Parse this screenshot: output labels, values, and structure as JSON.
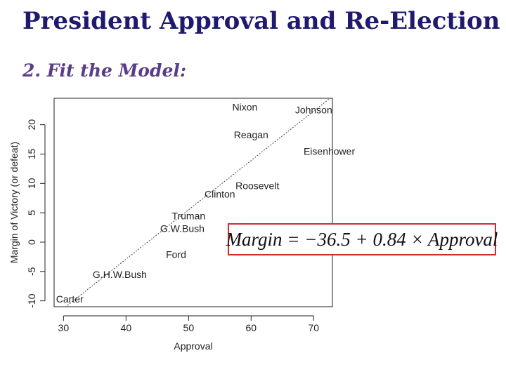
{
  "slide": {
    "title": "President Approval and Re-Election",
    "subtitle": "2. Fit the Model:",
    "equation": "Margin = −36.5 + 0.84 × Approval"
  },
  "chart_data": {
    "type": "scatter",
    "title": "",
    "xlabel": "Approval",
    "ylabel": "Margin of Victory (or defeat)",
    "xlim": [
      28.5,
      73
    ],
    "ylim": [
      -11,
      24.5
    ],
    "xticks": [
      30,
      40,
      50,
      60,
      70
    ],
    "yticks": [
      -10,
      -5,
      0,
      5,
      10,
      15,
      20
    ],
    "grid": false,
    "points": [
      {
        "label": "Nixon",
        "x": 59,
        "y": 23
      },
      {
        "label": "Johnson",
        "x": 70,
        "y": 22.5
      },
      {
        "label": "Reagan",
        "x": 60,
        "y": 18.3
      },
      {
        "label": "Eisenhower",
        "x": 72.5,
        "y": 15.5
      },
      {
        "label": "Roosevelt",
        "x": 61,
        "y": 9.6
      },
      {
        "label": "Clinton",
        "x": 55,
        "y": 8.2
      },
      {
        "label": "Truman",
        "x": 50,
        "y": 4.5
      },
      {
        "label": "G.W.Bush",
        "x": 49,
        "y": 2.3
      },
      {
        "label": "Ford",
        "x": 48,
        "y": -2.1
      },
      {
        "label": "G.H.W.Bush",
        "x": 39,
        "y": -5.5
      },
      {
        "label": "Carter",
        "x": 31,
        "y": -9.7
      }
    ],
    "fit_line": {
      "intercept": -36.5,
      "slope": 0.84
    }
  }
}
